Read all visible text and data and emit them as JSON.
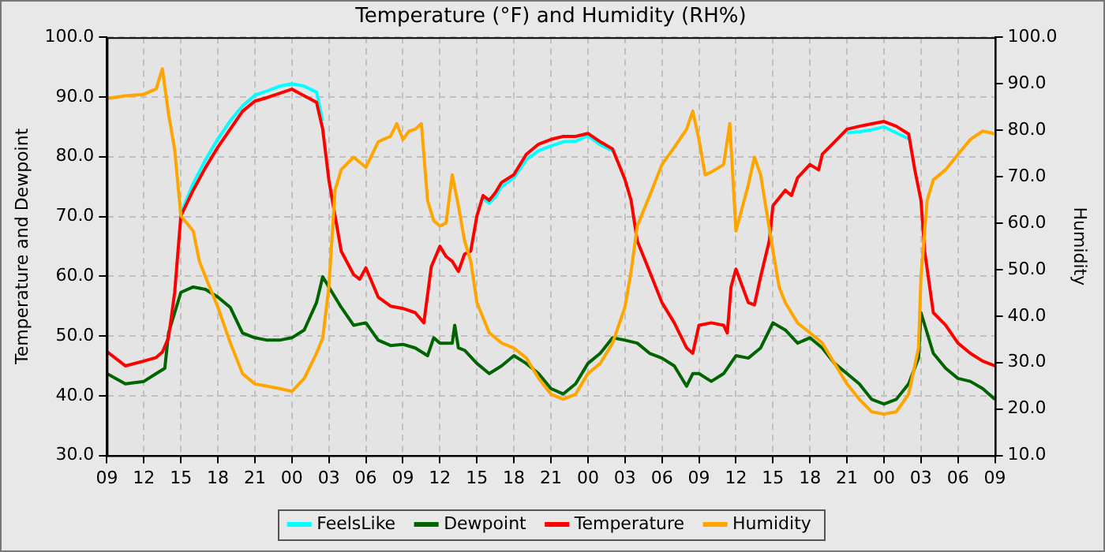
{
  "chart_data": {
    "type": "line",
    "title": "Temperature (°F) and Humidity (RH%)",
    "ylabel": "Temperature and Dewpoint",
    "y2label": "Humidity",
    "xlim": [
      9,
      81
    ],
    "xticks": [
      {
        "value": 9,
        "label": "09"
      },
      {
        "value": 12,
        "label": "12"
      },
      {
        "value": 15,
        "label": "15"
      },
      {
        "value": 18,
        "label": "18"
      },
      {
        "value": 21,
        "label": "21"
      },
      {
        "value": 24,
        "label": "00"
      },
      {
        "value": 27,
        "label": "03"
      },
      {
        "value": 30,
        "label": "06"
      },
      {
        "value": 33,
        "label": "09"
      },
      {
        "value": 36,
        "label": "12"
      },
      {
        "value": 39,
        "label": "15"
      },
      {
        "value": 42,
        "label": "18"
      },
      {
        "value": 45,
        "label": "21"
      },
      {
        "value": 48,
        "label": "00"
      },
      {
        "value": 51,
        "label": "03"
      },
      {
        "value": 54,
        "label": "06"
      },
      {
        "value": 57,
        "label": "09"
      },
      {
        "value": 60,
        "label": "12"
      },
      {
        "value": 63,
        "label": "15"
      },
      {
        "value": 66,
        "label": "18"
      },
      {
        "value": 69,
        "label": "21"
      },
      {
        "value": 72,
        "label": "00"
      },
      {
        "value": 75,
        "label": "03"
      },
      {
        "value": 78,
        "label": "06"
      },
      {
        "value": 81,
        "label": "09"
      }
    ],
    "ylim": [
      30,
      100
    ],
    "yticks": [
      {
        "value": 30,
        "label": "30.0"
      },
      {
        "value": 40,
        "label": "40.0"
      },
      {
        "value": 50,
        "label": "50.0"
      },
      {
        "value": 60,
        "label": "60.0"
      },
      {
        "value": 70,
        "label": "70.0"
      },
      {
        "value": 80,
        "label": "80.0"
      },
      {
        "value": 90,
        "label": "90.0"
      },
      {
        "value": 100,
        "label": "100.0"
      }
    ],
    "y2lim": [
      10,
      100
    ],
    "y2ticks": [
      {
        "value": 10,
        "label": "10.0"
      },
      {
        "value": 20,
        "label": "20.0"
      },
      {
        "value": 30,
        "label": "30.0"
      },
      {
        "value": 40,
        "label": "40.0"
      },
      {
        "value": 50,
        "label": "50.0"
      },
      {
        "value": 60,
        "label": "60.0"
      },
      {
        "value": 70,
        "label": "70.0"
      },
      {
        "value": 80,
        "label": "80.0"
      },
      {
        "value": 90,
        "label": "90.0"
      },
      {
        "value": 100,
        "label": "100.0"
      }
    ],
    "grid": true,
    "legend": "bottom",
    "line_style": "solid",
    "series": [
      {
        "name": "FeelsLike",
        "color": "#00ffff",
        "x": [
          15,
          16,
          17,
          18,
          19,
          20,
          21,
          22,
          23,
          24,
          25,
          26,
          26.5,
          39.5,
          40,
          40.5,
          41,
          42,
          43,
          44,
          45,
          46,
          47,
          48,
          49,
          50,
          69,
          70,
          71,
          72,
          73,
          74
        ],
        "values": [
          70.5,
          75.5,
          79.5,
          83,
          86,
          88.5,
          90.3,
          91,
          91.8,
          92.2,
          91.8,
          90.8,
          86,
          73,
          72.2,
          73.3,
          75,
          76.5,
          79.5,
          81,
          81.8,
          82.5,
          82.6,
          83.5,
          82,
          81,
          84,
          84.2,
          84.5,
          85,
          84,
          83
        ]
      },
      {
        "name": "Dewpoint",
        "color": "#006400",
        "x": [
          9,
          10.5,
          12,
          13,
          13.7,
          14,
          14.5,
          15,
          16,
          17,
          18,
          19,
          20,
          21,
          22,
          23,
          24,
          25,
          26,
          26.5,
          27,
          28,
          29,
          30,
          31,
          32,
          33,
          34,
          35,
          35.5,
          36,
          37,
          37.2,
          37.5,
          38,
          39,
          40,
          41,
          42,
          43,
          44,
          45,
          46,
          47,
          48,
          49,
          50,
          51,
          52,
          53,
          54,
          55,
          56,
          56.5,
          57,
          58,
          59,
          60,
          61,
          62,
          63,
          64,
          65,
          66,
          67,
          68,
          69,
          70,
          71,
          72,
          73,
          74,
          74.8,
          75,
          76,
          77,
          78,
          79,
          80,
          81
        ],
        "values": [
          43.7,
          42,
          42.4,
          43.7,
          44.6,
          50.5,
          53.9,
          57.3,
          58.2,
          57.8,
          56.5,
          54.8,
          50.5,
          49.7,
          49.3,
          49.3,
          49.7,
          51,
          55.6,
          59.9,
          58.2,
          54.8,
          51.8,
          52.2,
          49.3,
          48.4,
          48.6,
          48,
          46.7,
          49.7,
          48.8,
          48.8,
          51.8,
          48,
          47.6,
          45.4,
          43.7,
          45,
          46.7,
          45.4,
          43.7,
          41.2,
          40.3,
          42,
          45.4,
          47.1,
          49.7,
          49.3,
          48.8,
          47.1,
          46.3,
          45,
          41.6,
          43.7,
          43.7,
          42.4,
          43.7,
          46.7,
          46.3,
          48,
          52.2,
          51,
          48.8,
          49.7,
          48,
          45.4,
          43.7,
          42,
          39.4,
          38.6,
          39.4,
          42,
          46.3,
          53.9,
          47.1,
          44.6,
          42.9,
          42.4,
          41.2,
          39.4
        ]
      },
      {
        "name": "Temperature",
        "color": "#ff0000",
        "x": [
          9,
          10.5,
          12,
          13,
          13.5,
          14,
          14.5,
          15,
          16,
          17,
          18,
          19,
          20,
          21,
          22,
          23,
          24,
          25,
          26,
          26.5,
          27,
          27.5,
          28,
          29,
          29.5,
          30,
          31,
          32,
          33,
          34,
          34.7,
          35.3,
          36,
          36.5,
          37,
          37.5,
          38,
          38.5,
          39,
          39.5,
          40,
          40.5,
          41,
          42,
          43,
          44,
          45,
          46,
          47,
          48,
          49,
          50,
          51,
          51.5,
          52,
          53,
          54,
          55,
          56,
          56.5,
          57,
          58,
          59,
          59.3,
          59.6,
          60,
          61,
          61.5,
          62,
          62.7,
          63,
          64,
          64.5,
          65,
          66,
          66.7,
          67,
          68,
          69,
          70,
          71,
          72,
          73,
          74,
          74.5,
          75,
          75.3,
          76,
          77,
          78,
          79,
          80,
          81
        ],
        "values": [
          47.4,
          45,
          45.8,
          46.4,
          47.3,
          49.7,
          57.3,
          70.1,
          74.4,
          78.2,
          81.6,
          84.6,
          87.6,
          89.3,
          89.9,
          90.6,
          91.3,
          90.2,
          89.1,
          84.6,
          76.1,
          70.1,
          64.2,
          60.3,
          59.5,
          61.4,
          56.5,
          55,
          54.6,
          53.9,
          52.2,
          61.6,
          65,
          63.3,
          62.5,
          60.8,
          63.7,
          64.2,
          70.1,
          73.5,
          72.7,
          74,
          75.7,
          77,
          80.4,
          82.1,
          82.9,
          83.4,
          83.4,
          83.9,
          82.5,
          81.3,
          76.2,
          72.7,
          65.9,
          60.8,
          55.6,
          52.2,
          48,
          47.1,
          51.8,
          52.2,
          51.8,
          50.5,
          58.2,
          61.2,
          55.6,
          55.2,
          59.9,
          65.9,
          71.8,
          74.4,
          73.5,
          76.5,
          78.7,
          77.8,
          80.4,
          82.5,
          84.6,
          85.1,
          85.5,
          85.9,
          85.1,
          83.8,
          77.8,
          72.7,
          64.2,
          53.9,
          51.8,
          48.8,
          47.1,
          45.8,
          45
        ]
      },
      {
        "name": "Humidity",
        "color": "#ffa500",
        "axis": "y2",
        "x": [
          9,
          10.5,
          12,
          13,
          13.5,
          14,
          14.5,
          15,
          16,
          16.5,
          17,
          18,
          19,
          20,
          21,
          22,
          23,
          24,
          25,
          26,
          26.5,
          27,
          27.5,
          28,
          29,
          30,
          31,
          32,
          32.5,
          33,
          33.5,
          34,
          34.5,
          35,
          35.5,
          36,
          36.5,
          37,
          37.5,
          38,
          38.5,
          39,
          40,
          41,
          42,
          43,
          44,
          45,
          46,
          47,
          48,
          49,
          50,
          51,
          51.5,
          52,
          53,
          54,
          55,
          56,
          56.5,
          57,
          57.5,
          58,
          59,
          59.5,
          60,
          61,
          61.5,
          62,
          63,
          63.5,
          64,
          65,
          66,
          67,
          68,
          69,
          70,
          71,
          72,
          73,
          74,
          74.8,
          75,
          75.5,
          76,
          77,
          78,
          79,
          80,
          81
        ],
        "values": [
          86.8,
          87.4,
          87.7,
          88.9,
          93.2,
          83.5,
          75.8,
          61.6,
          58.3,
          51.8,
          48.4,
          41.9,
          34.3,
          27.6,
          25.4,
          24.9,
          24.4,
          23.8,
          26.6,
          32,
          35.3,
          46.3,
          67.1,
          71.5,
          74.2,
          72,
          77.5,
          78.7,
          81.4,
          78,
          79.8,
          80.2,
          81.4,
          64.9,
          60.5,
          59.4,
          60,
          70.4,
          63.7,
          56.2,
          51.8,
          42.9,
          36.4,
          34.2,
          33.1,
          31,
          26.6,
          23.2,
          22.1,
          23.2,
          27.6,
          29.8,
          34.2,
          41.9,
          49.6,
          59.4,
          65.9,
          72.6,
          76.3,
          80.2,
          84.1,
          78,
          70.4,
          71,
          72.6,
          81.4,
          58.3,
          68.2,
          74.2,
          70.4,
          54,
          46.3,
          42.9,
          38.5,
          36.4,
          34.2,
          29.8,
          25.4,
          22.1,
          19.4,
          18.9,
          19.4,
          23.2,
          33.1,
          48.4,
          64.9,
          69.3,
          71.5,
          74.8,
          78,
          79.8,
          79.2
        ]
      }
    ]
  }
}
